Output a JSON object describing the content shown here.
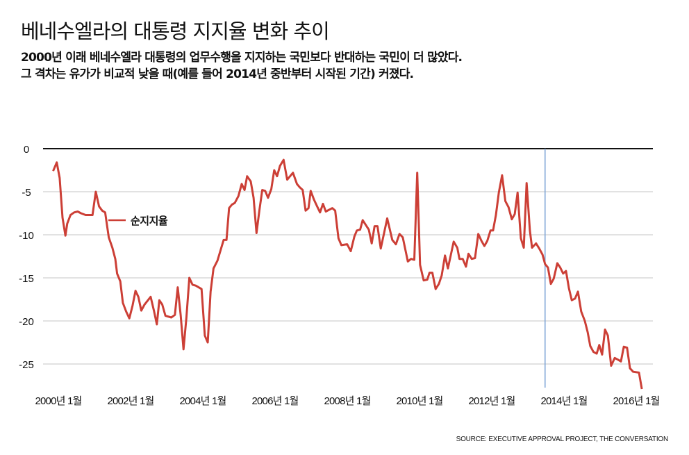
{
  "title": "베네수엘라의 대통령 지지율 변화 추이",
  "subtitle_lines": [
    "2000년 이래 베네수엘라 대통령의 업무수행을 지지하는 국민보다 반대하는 국민이 더 많았다.",
    "그 격차는 유가가 비교적 낮을 때(예를 들어 2014년 중반부터 시작된 기간) 커졌다."
  ],
  "source": "SOURCE: EXECUTIVE APPROVAL PROJECT, THE CONVERSATION",
  "colors": {
    "line": "#cc3f36",
    "marker": "#7ba4d6",
    "grid": "#e2e2e2",
    "zero": "#111111"
  },
  "chart_data": {
    "type": "line",
    "title": "베네수엘라의 대통령 지지율 변화 추이",
    "xlabel": "",
    "ylabel": "",
    "ylim": [
      -28,
      0
    ],
    "xlim": [
      2000,
      2016.4
    ],
    "yticks": [
      0,
      -5,
      -10,
      -15,
      -20,
      -25
    ],
    "ytick_labels": [
      "0",
      "-5",
      "-10",
      "-15",
      "-20",
      "-25"
    ],
    "xticks": [
      2000,
      2002,
      2004,
      2006,
      2008,
      2010,
      2012,
      2014,
      2016
    ],
    "xtick_labels": [
      "2000년 1월",
      "2002년 1월",
      "2004년 1월",
      "2006년 1월",
      "2008년 1월",
      "2010년 1월",
      "2012년 1월",
      "2014년 1월",
      "2016년 1월"
    ],
    "grid": true,
    "marker_line_x": 2013.63,
    "series": [
      {
        "name": "순지지율",
        "x": [
          2000.01,
          2000.11,
          2000.19,
          2000.27,
          2000.35,
          2000.4,
          2000.49,
          2000.59,
          2000.69,
          2000.78,
          2000.91,
          2001.1,
          2001.19,
          2001.28,
          2001.37,
          2001.45,
          2001.55,
          2001.65,
          2001.73,
          2001.78,
          2001.87,
          2001.94,
          2002.03,
          2002.12,
          2002.21,
          2002.29,
          2002.37,
          2002.45,
          2002.54,
          2002.71,
          2002.8,
          2002.88,
          2002.95,
          2003.03,
          2003.12,
          2003.28,
          2003.38,
          2003.46,
          2003.54,
          2003.62,
          2003.7,
          2003.78,
          2003.87,
          2003.96,
          2004.12,
          2004.21,
          2004.29,
          2004.37,
          2004.45,
          2004.56,
          2004.73,
          2004.81,
          2004.88,
          2004.96,
          2005.04,
          2005.14,
          2005.23,
          2005.31,
          2005.38,
          2005.48,
          2005.56,
          2005.64,
          2005.72,
          2005.8,
          2005.88,
          2005.96,
          2006.05,
          2006.13,
          2006.21,
          2006.29,
          2006.39,
          2006.49,
          2006.65,
          2006.76,
          2006.84,
          2006.92,
          2007.0,
          2007.08,
          2007.14,
          2007.23,
          2007.32,
          2007.4,
          2007.48,
          2007.56,
          2007.74,
          2007.82,
          2007.91,
          2007.99,
          2008.15,
          2008.25,
          2008.35,
          2008.42,
          2008.51,
          2008.58,
          2008.75,
          2008.83,
          2008.91,
          2008.99,
          2009.08,
          2009.26,
          2009.4,
          2009.5,
          2009.6,
          2009.69,
          2009.83,
          2009.92,
          2010.01,
          2010.09,
          2010.17,
          2010.27,
          2010.37,
          2010.43,
          2010.51,
          2010.6,
          2010.69,
          2010.77,
          2010.86,
          2010.94,
          2011.1,
          2011.2,
          2011.26,
          2011.35,
          2011.44,
          2011.51,
          2011.6,
          2011.69,
          2011.78,
          2011.87,
          2011.95,
          2012.03,
          2012.12,
          2012.19,
          2012.27,
          2012.35,
          2012.44,
          2012.53,
          2012.62,
          2012.71,
          2012.79,
          2012.87,
          2012.96,
          2013.04,
          2013.12,
          2013.21,
          2013.27,
          2013.38,
          2013.47,
          2013.56,
          2013.63,
          2013.71,
          2013.79,
          2013.87,
          2013.97,
          2014.05,
          2014.13,
          2014.21,
          2014.29,
          2014.37,
          2014.46,
          2014.54,
          2014.63,
          2014.73,
          2014.81,
          2014.88,
          2014.97,
          2015.06,
          2015.13,
          2015.21,
          2015.29,
          2015.37,
          2015.46,
          2015.56,
          2015.65,
          2015.73,
          2015.81,
          2015.9,
          2015.98,
          2016.07,
          2016.23,
          2016.31
        ],
        "values": [
          -2.6,
          -1.6,
          -3.4,
          -8.0,
          -10.1,
          -8.7,
          -7.7,
          -7.4,
          -7.3,
          -7.5,
          -7.7,
          -7.7,
          -5.0,
          -6.7,
          -7.2,
          -7.4,
          -10.3,
          -11.5,
          -12.8,
          -14.5,
          -15.4,
          -17.9,
          -18.9,
          -19.7,
          -18.2,
          -16.5,
          -17.2,
          -18.8,
          -18.1,
          -17.2,
          -18.8,
          -20.4,
          -17.6,
          -18.1,
          -19.4,
          -19.6,
          -19.3,
          -16.1,
          -19.3,
          -23.3,
          -19.6,
          -15.0,
          -15.8,
          -15.9,
          -16.3,
          -21.7,
          -22.5,
          -16.6,
          -13.9,
          -13.0,
          -10.6,
          -10.6,
          -6.9,
          -6.5,
          -6.3,
          -5.5,
          -4.1,
          -4.8,
          -3.2,
          -3.8,
          -5.7,
          -9.8,
          -7.2,
          -4.8,
          -4.9,
          -5.7,
          -4.7,
          -2.5,
          -3.2,
          -2.0,
          -1.3,
          -3.6,
          -2.8,
          -4.1,
          -4.5,
          -4.8,
          -7.2,
          -6.9,
          -4.9,
          -5.9,
          -6.7,
          -7.4,
          -6.4,
          -7.3,
          -6.9,
          -7.2,
          -10.4,
          -11.2,
          -11.1,
          -11.9,
          -10.2,
          -9.5,
          -9.4,
          -8.3,
          -9.4,
          -11.0,
          -9.0,
          -9.0,
          -11.6,
          -8.1,
          -10.6,
          -11.1,
          -9.9,
          -10.3,
          -13.1,
          -12.8,
          -12.9,
          -2.8,
          -13.5,
          -15.3,
          -15.2,
          -14.4,
          -14.4,
          -16.3,
          -15.7,
          -14.7,
          -12.4,
          -13.9,
          -10.8,
          -11.5,
          -12.8,
          -12.8,
          -13.7,
          -12.2,
          -12.8,
          -12.7,
          -9.9,
          -10.7,
          -11.3,
          -10.7,
          -9.5,
          -9.5,
          -7.7,
          -5.1,
          -3.1,
          -6.1,
          -6.8,
          -8.2,
          -7.6,
          -5.1,
          -10.4,
          -11.5,
          -4.0,
          -9.5,
          -11.5,
          -11.0,
          -11.6,
          -12.3,
          -13.4,
          -13.8,
          -15.7,
          -15.1,
          -13.3,
          -13.8,
          -14.5,
          -14.2,
          -16.2,
          -17.6,
          -17.4,
          -16.6,
          -18.9,
          -20.0,
          -21.3,
          -22.9,
          -23.6,
          -23.8,
          -22.8,
          -23.9,
          -21.0,
          -21.7,
          -25.2,
          -24.3,
          -24.5,
          -24.7,
          -23.0,
          -23.1,
          -25.5,
          -25.9,
          -26.0,
          -27.9
        ]
      }
    ],
    "legend": {
      "label": "순지지율",
      "placement": "inline-left"
    }
  }
}
